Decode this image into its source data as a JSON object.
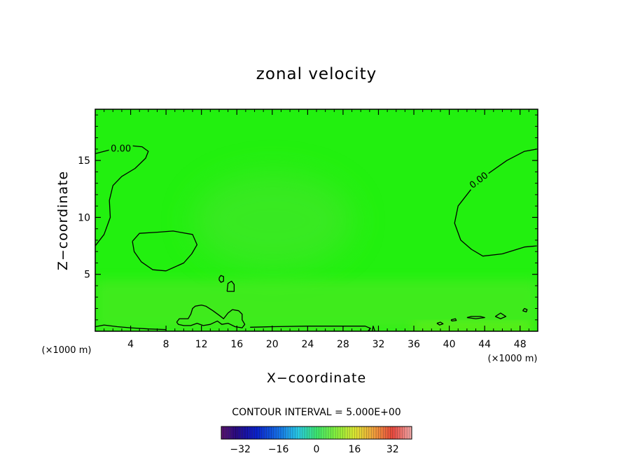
{
  "chart_data": {
    "type": "contour",
    "title": "zonal velocity",
    "xlabel": "X−coordinate",
    "ylabel": "Z−coordinate",
    "x_unit": "(×1000 m)",
    "y_unit": "(×1000 m)",
    "xlim": [
      0,
      50
    ],
    "ylim": [
      0,
      19.5
    ],
    "x_ticks": [
      4,
      8,
      12,
      16,
      20,
      24,
      28,
      32,
      36,
      40,
      44,
      48
    ],
    "x_ticklabels": [
      "4",
      "8",
      "12",
      "16",
      "20",
      "24",
      "28",
      "32",
      "36",
      "40",
      "44",
      "48"
    ],
    "y_ticks": [
      5,
      10,
      15
    ],
    "y_ticklabels": [
      "5",
      "10",
      "15"
    ],
    "contour_interval_label": "CONTOUR INTERVAL = 5.000E+00",
    "contour_labels": [
      {
        "text": "0.00",
        "x": 2.9,
        "z": 16.1,
        "rotation_deg": 0
      },
      {
        "text": "0.00",
        "x": 43.3,
        "z": 13.3,
        "rotation_deg": -37
      }
    ],
    "contours": [
      {
        "level": 0,
        "points": [
          [
            0.0,
            7.5
          ],
          [
            1.0,
            8.5
          ],
          [
            1.7,
            10.0
          ],
          [
            1.6,
            11.5
          ],
          [
            2.0,
            12.8
          ],
          [
            3.0,
            13.6
          ],
          [
            4.5,
            14.3
          ],
          [
            5.7,
            15.2
          ],
          [
            6.0,
            15.8
          ],
          [
            5.3,
            16.2
          ],
          [
            4.0,
            16.3
          ],
          [
            2.5,
            16.1
          ],
          [
            1.0,
            15.8
          ],
          [
            0.0,
            15.6
          ]
        ]
      },
      {
        "level": 0,
        "points": [
          [
            49.9,
            16.0
          ],
          [
            48.5,
            15.8
          ],
          [
            46.5,
            15.0
          ],
          [
            44.5,
            13.9
          ],
          [
            42.5,
            12.5
          ],
          [
            41.0,
            11.0
          ],
          [
            40.6,
            9.5
          ],
          [
            41.3,
            8.0
          ],
          [
            42.5,
            7.2
          ],
          [
            43.8,
            6.6
          ],
          [
            46.0,
            6.8
          ],
          [
            48.5,
            7.4
          ],
          [
            49.9,
            7.5
          ]
        ]
      },
      {
        "level": 0,
        "points": [
          [
            4.2,
            7.9
          ],
          [
            5.0,
            8.6
          ],
          [
            7.0,
            8.7
          ],
          [
            8.8,
            8.8
          ],
          [
            11.0,
            8.5
          ],
          [
            11.5,
            7.6
          ],
          [
            10.9,
            6.8
          ],
          [
            10.0,
            6.0
          ],
          [
            8.0,
            5.3
          ],
          [
            6.5,
            5.4
          ],
          [
            5.2,
            6.1
          ],
          [
            4.4,
            7.0
          ],
          [
            4.2,
            7.9
          ]
        ]
      },
      {
        "level": 0,
        "points": [
          [
            14.0,
            4.7
          ],
          [
            14.2,
            4.9
          ],
          [
            14.5,
            4.8
          ],
          [
            14.5,
            4.4
          ],
          [
            14.2,
            4.3
          ],
          [
            14.0,
            4.5
          ],
          [
            14.0,
            4.7
          ]
        ]
      },
      {
        "level": 0,
        "points": [
          [
            14.9,
            3.5
          ],
          [
            15.0,
            4.2
          ],
          [
            15.4,
            4.4
          ],
          [
            15.7,
            4.1
          ],
          [
            15.7,
            3.5
          ],
          [
            14.9,
            3.5
          ]
        ]
      },
      {
        "level": 0,
        "points": [
          [
            9.2,
            0.8
          ],
          [
            9.5,
            1.1
          ],
          [
            10.5,
            1.1
          ],
          [
            10.8,
            1.5
          ],
          [
            11.0,
            2.0
          ],
          [
            11.3,
            2.2
          ],
          [
            12.0,
            2.3
          ],
          [
            12.5,
            2.2
          ],
          [
            13.3,
            1.8
          ],
          [
            14.0,
            1.4
          ],
          [
            14.5,
            1.1
          ],
          [
            15.0,
            1.6
          ],
          [
            15.5,
            1.9
          ],
          [
            16.2,
            1.8
          ],
          [
            16.6,
            1.5
          ],
          [
            16.6,
            1.0
          ],
          [
            16.9,
            0.6
          ],
          [
            16.6,
            0.3
          ],
          [
            15.8,
            0.4
          ],
          [
            15.0,
            0.7
          ],
          [
            14.3,
            0.6
          ],
          [
            13.8,
            0.9
          ],
          [
            13.0,
            0.6
          ],
          [
            12.2,
            0.5
          ],
          [
            11.5,
            0.7
          ],
          [
            10.8,
            0.5
          ],
          [
            10.0,
            0.5
          ],
          [
            9.4,
            0.6
          ],
          [
            9.2,
            0.8
          ]
        ]
      },
      {
        "level": 0,
        "points": [
          [
            0.0,
            0.4
          ],
          [
            1.0,
            0.55
          ],
          [
            2.5,
            0.4
          ],
          [
            4.0,
            0.3
          ],
          [
            6.0,
            0.2
          ],
          [
            8.0,
            0.15
          ]
        ]
      },
      {
        "level": 0,
        "points": [
          [
            17.5,
            0.35
          ],
          [
            20.0,
            0.4
          ],
          [
            24.0,
            0.45
          ],
          [
            28.0,
            0.45
          ],
          [
            30.5,
            0.45
          ],
          [
            31.1,
            0.25
          ],
          [
            30.8,
            0.0
          ]
        ]
      },
      {
        "level": 0,
        "points": [
          [
            31.3,
            0.0
          ],
          [
            31.4,
            0.45
          ],
          [
            31.6,
            0.0
          ]
        ]
      },
      {
        "level": 0,
        "points": [
          [
            38.6,
            0.7
          ],
          [
            39.0,
            0.8
          ],
          [
            39.3,
            0.65
          ],
          [
            38.9,
            0.55
          ],
          [
            38.6,
            0.7
          ]
        ]
      },
      {
        "level": 0,
        "points": [
          [
            40.2,
            1.0
          ],
          [
            40.7,
            1.1
          ],
          [
            40.8,
            0.95
          ],
          [
            40.3,
            0.9
          ],
          [
            40.2,
            1.0
          ]
        ]
      },
      {
        "level": 0,
        "points": [
          [
            42.0,
            1.2
          ],
          [
            42.5,
            1.3
          ],
          [
            43.5,
            1.3
          ],
          [
            44.0,
            1.2
          ],
          [
            43.0,
            1.1
          ],
          [
            42.0,
            1.2
          ]
        ]
      },
      {
        "level": 0,
        "points": [
          [
            45.2,
            1.3
          ],
          [
            45.8,
            1.6
          ],
          [
            46.4,
            1.3
          ],
          [
            45.8,
            1.1
          ],
          [
            45.2,
            1.3
          ]
        ]
      },
      {
        "level": 0,
        "points": [
          [
            48.3,
            1.8
          ],
          [
            48.5,
            2.0
          ],
          [
            48.8,
            1.9
          ],
          [
            48.7,
            1.7
          ],
          [
            48.3,
            1.8
          ]
        ]
      }
    ],
    "colorbar": {
      "min": -40,
      "max": 40,
      "levels": 80,
      "tick_values": [
        -32,
        -16,
        0,
        16,
        32
      ],
      "tick_labels": [
        "−32",
        "−16",
        "0",
        "16",
        "32"
      ]
    },
    "field_colors": {
      "background": "#22f00f",
      "lighter_patch": "#4be431",
      "near_surface": "#5ce82a",
      "surface_yellow": "#8cf018"
    }
  }
}
